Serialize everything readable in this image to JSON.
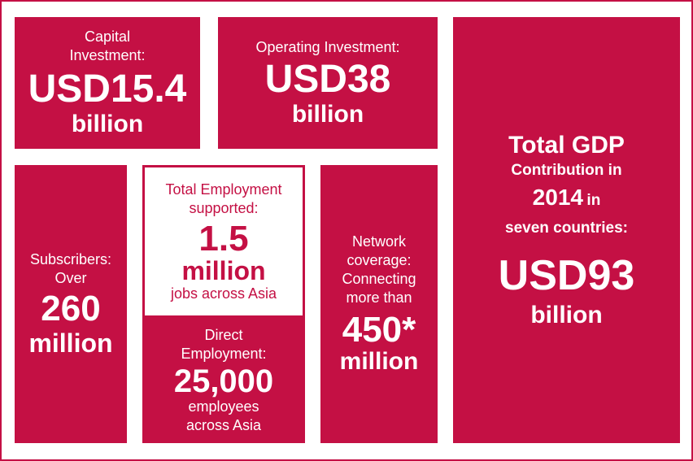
{
  "capital": {
    "label": "Capital Investment:",
    "value": "USD15.4",
    "unit": "billion"
  },
  "operating": {
    "label": "Operating Investment:",
    "value": "USD38",
    "unit": "billion"
  },
  "gdp": {
    "label_line1": "Total GDP",
    "label_line2": "Contribution in",
    "year": "2014",
    "label_in": "in",
    "label_line4": "seven countries:",
    "value": "USD93",
    "unit": "billion"
  },
  "subscribers": {
    "label": "Subscribers:",
    "qualifier": "Over",
    "value": "260",
    "unit": "million"
  },
  "total_employment": {
    "label": "Total Employment supported:",
    "value": "1.5",
    "unit": "million",
    "sub": "jobs across Asia"
  },
  "direct_employment": {
    "label": "Direct Employment:",
    "value": "25,000",
    "sub1": "employees",
    "sub2": "across Asia"
  },
  "network": {
    "label": "Network coverage: Connecting more than",
    "value": "450*",
    "unit": "million"
  },
  "colors": {
    "brand_red": "#c41044",
    "white": "#ffffff"
  }
}
